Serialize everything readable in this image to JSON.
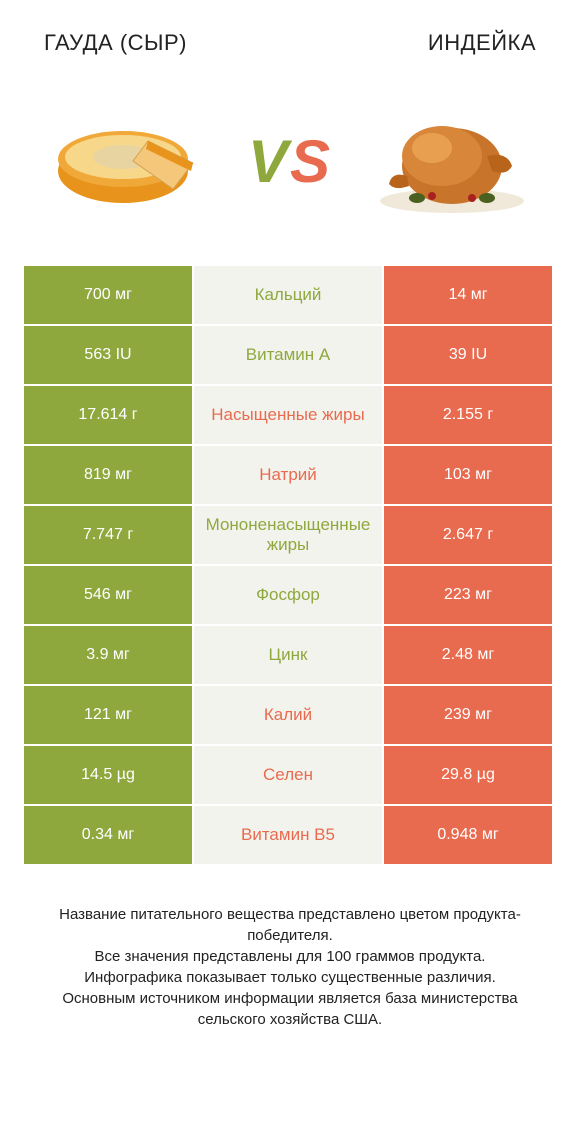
{
  "header": {
    "left": "ГАУДА (СЫР)",
    "right": "ИНДЕЙКА"
  },
  "vs": {
    "v": "V",
    "s": "S"
  },
  "colors": {
    "green": "#8fa83e",
    "orange": "#e86b4f",
    "mid_bg": "#f3f3ed",
    "text": "#222222",
    "white": "#ffffff"
  },
  "rows": [
    {
      "left": "700 мг",
      "mid": "Кальций",
      "mid_color": "green",
      "right": "14 мг"
    },
    {
      "left": "563 IU",
      "mid": "Витамин A",
      "mid_color": "green",
      "right": "39 IU"
    },
    {
      "left": "17.614 г",
      "mid": "Насыщенные жиры",
      "mid_color": "orange",
      "right": "2.155 г"
    },
    {
      "left": "819 мг",
      "mid": "Натрий",
      "mid_color": "orange",
      "right": "103 мг"
    },
    {
      "left": "7.747 г",
      "mid": "Мононенасыщенные жиры",
      "mid_color": "green",
      "right": "2.647 г"
    },
    {
      "left": "546 мг",
      "mid": "Фосфор",
      "mid_color": "green",
      "right": "223 мг"
    },
    {
      "left": "3.9 мг",
      "mid": "Цинк",
      "mid_color": "green",
      "right": "2.48 мг"
    },
    {
      "left": "121 мг",
      "mid": "Калий",
      "mid_color": "orange",
      "right": "239 мг"
    },
    {
      "left": "14.5 µg",
      "mid": "Селен",
      "mid_color": "orange",
      "right": "29.8 µg"
    },
    {
      "left": "0.34 мг",
      "mid": "Витамин B5",
      "mid_color": "orange",
      "right": "0.948 мг"
    }
  ],
  "footer": {
    "line1": "Название питательного вещества представлено цветом продукта-победителя.",
    "line2": "Все значения представлены для 100 граммов продукта.",
    "line3": "Инфографика показывает только существенные различия.",
    "line4": "Основным источником информации является база министерства сельского хозяйства США."
  }
}
